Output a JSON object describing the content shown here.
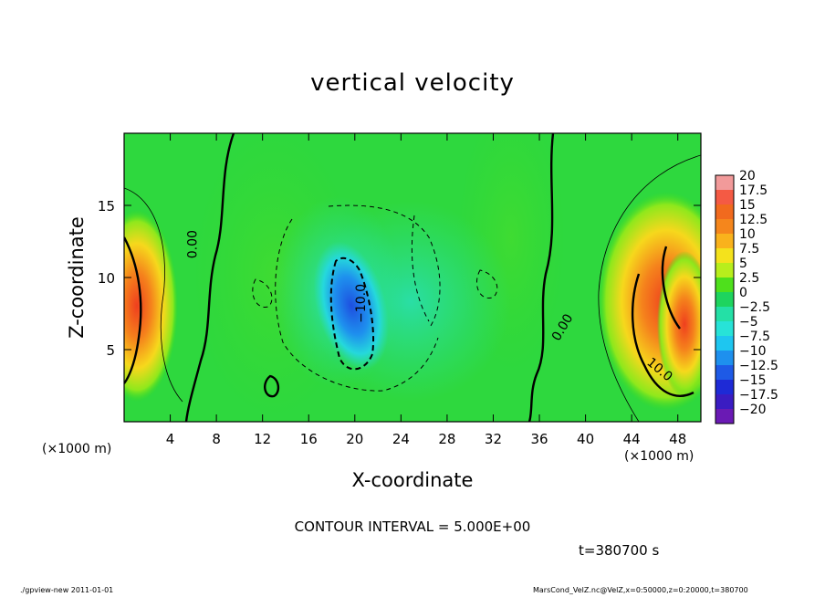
{
  "chart_data": {
    "type": "heatmap",
    "title": "vertical velocity",
    "xlabel": "X-coordinate",
    "ylabel": "Z-coordinate",
    "x_unit_label": "(×1000 m)",
    "xlim": [
      0,
      50
    ],
    "ylim": [
      0,
      20
    ],
    "x_ticks": [
      4,
      8,
      12,
      16,
      20,
      24,
      28,
      32,
      36,
      40,
      44,
      48
    ],
    "y_ticks": [
      5,
      10,
      15
    ],
    "colorbar": {
      "levels": [
        20,
        17.5,
        15,
        12.5,
        10,
        7.5,
        5,
        2.5,
        0,
        -2.5,
        -5,
        -7.5,
        -10,
        -12.5,
        -15,
        -17.5,
        -20
      ],
      "labels": [
        "20",
        "17.5",
        "15",
        "12.5",
        "10",
        "7.5",
        "5",
        "2.5",
        "0",
        "−2.5",
        "−5",
        "−7.5",
        "−10",
        "−12.5",
        "−15",
        "−17.5",
        "−20"
      ],
      "colors": [
        "#f29a9a",
        "#f45a44",
        "#f16a1e",
        "#f5861c",
        "#f9b21c",
        "#f4e21c",
        "#b8ee1c",
        "#4ee01c",
        "#1ed45e",
        "#24e0a6",
        "#27e3d8",
        "#1ec6f0",
        "#1e90ee",
        "#1e5ae6",
        "#1e2ad6",
        "#3a1cc2",
        "#6a1ab4"
      ]
    },
    "contour_labels": [
      {
        "text": "0.00",
        "x": 6.3,
        "z": 12.3,
        "rotate": -90
      },
      {
        "text": "−10.0",
        "x": 20.9,
        "z": 8.2,
        "rotate": -90
      },
      {
        "text": "0.00",
        "x": 38.3,
        "z": 6.4,
        "rotate": -60
      },
      {
        "text": "10.0",
        "x": 46.2,
        "z": 3.4,
        "rotate": 40
      }
    ],
    "contour_interval": "CONTOUR INTERVAL = 5.000E+00",
    "time": "t=380700 s"
  },
  "footer": {
    "left": "./gpview-new  2011-01-01",
    "right": "MarsCond_VelZ.nc@VelZ,x=0:50000,z=0:20000,t=380700"
  }
}
